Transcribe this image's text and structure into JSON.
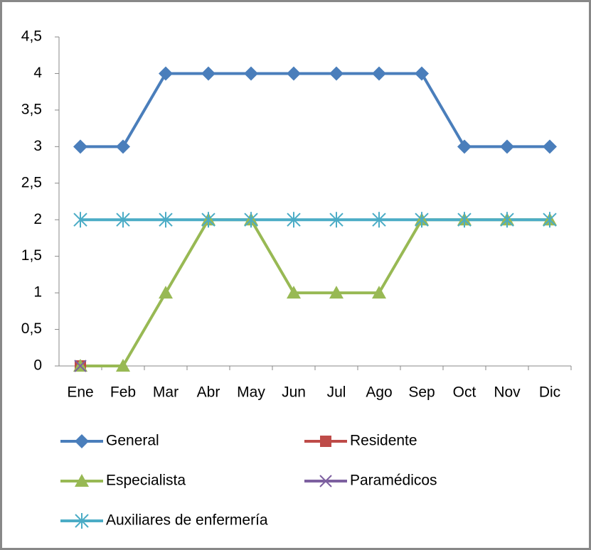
{
  "chart_data": {
    "type": "line",
    "categories": [
      "Ene",
      "Feb",
      "Mar",
      "Abr",
      "May",
      "Jun",
      "Jul",
      "Ago",
      "Sep",
      "Oct",
      "Nov",
      "Dic"
    ],
    "series": [
      {
        "name": "General",
        "color": "#4a7ebb",
        "marker": "diamond",
        "values": [
          3,
          3,
          4,
          4,
          4,
          4,
          4,
          4,
          4,
          3,
          3,
          3
        ]
      },
      {
        "name": "Residente",
        "color": "#be4b48",
        "marker": "square",
        "values": [
          0,
          null,
          null,
          null,
          null,
          null,
          null,
          null,
          null,
          null,
          null,
          null
        ]
      },
      {
        "name": "Especialista",
        "color": "#98b954",
        "marker": "triangle",
        "values": [
          0,
          0,
          1,
          2,
          2,
          1,
          1,
          1,
          2,
          2,
          2,
          2
        ]
      },
      {
        "name": "Paramédicos",
        "color": "#7d60a0",
        "marker": "x",
        "values": [
          0,
          null,
          null,
          null,
          null,
          null,
          null,
          null,
          null,
          null,
          null,
          null
        ]
      },
      {
        "name": "Auxiliares de enfermería",
        "color": "#4bacc6",
        "marker": "star",
        "values": [
          2,
          2,
          2,
          2,
          2,
          2,
          2,
          2,
          2,
          2,
          2,
          2
        ]
      }
    ],
    "ylim": [
      0,
      4.5
    ],
    "yticks": [
      0,
      {
        "value": 0.5,
        "label": "0,5"
      },
      1,
      {
        "value": 1.5,
        "label": "1,5"
      },
      2,
      {
        "value": 2.5,
        "label": "2,5"
      },
      3,
      {
        "value": 3.5,
        "label": "3,5"
      },
      4,
      {
        "value": 4.5,
        "label": "4,5"
      }
    ]
  }
}
